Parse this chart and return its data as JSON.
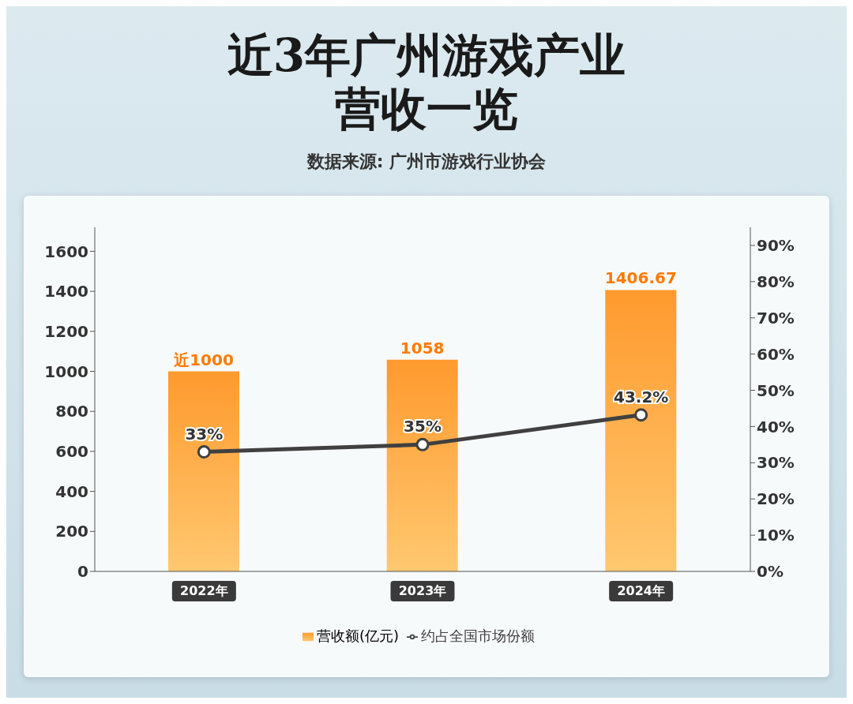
{
  "chart_data": {
    "type": "bar",
    "title": "近3年广州游戏产业营收一览",
    "subtitle": "数据来源: 广州市游戏行业协会",
    "categories": [
      "2022年",
      "2023年",
      "2024年"
    ],
    "series": [
      {
        "name": "营收额(亿元)",
        "color": "#ff9a2e",
        "values": [
          1000,
          1058,
          1406.67
        ],
        "value_labels": [
          "近1000",
          "1058",
          "1406.67"
        ]
      },
      {
        "name": "约占全国市场份额",
        "type": "line",
        "axis": "y2",
        "color": "#404040",
        "values": [
          33,
          35,
          43.2
        ],
        "value_labels": [
          "33%",
          "35%",
          "43.2%"
        ]
      }
    ],
    "ylim": [
      0,
      1720
    ],
    "yticks": [
      0,
      200,
      400,
      600,
      800,
      1000,
      1200,
      1400,
      1600
    ],
    "y2lim": [
      0,
      95
    ],
    "y2ticks": [
      {
        "value": 0,
        "label": "0%"
      },
      {
        "value": 10,
        "label": "10%"
      },
      {
        "value": 20,
        "label": "20%"
      },
      {
        "value": 30,
        "label": "30%"
      },
      {
        "value": 40,
        "label": "40%"
      },
      {
        "value": 50,
        "label": "50%"
      },
      {
        "value": 60,
        "label": "60%"
      },
      {
        "value": 70,
        "label": "70%"
      },
      {
        "value": 80,
        "label": "80%"
      },
      {
        "value": 90,
        "label": "90%"
      }
    ],
    "marker": "circle",
    "legend": "bottom"
  }
}
